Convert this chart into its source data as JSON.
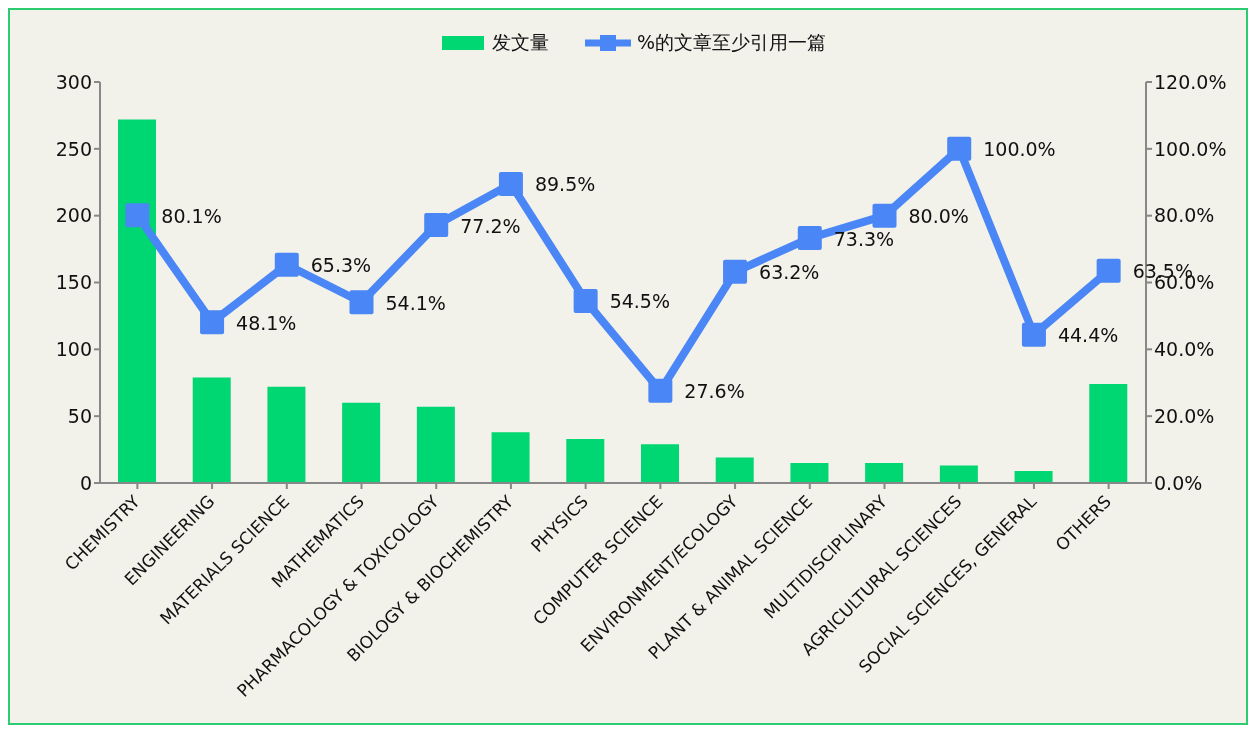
{
  "chart_data": {
    "type": "bar",
    "categories": [
      "CHEMISTRY",
      "ENGINEERING",
      "MATERIALS SCIENCE",
      "MATHEMATICS",
      "PHARMACOLOGY & TOXICOLOGY",
      "BIOLOGY & BIOCHEMISTRY",
      "PHYSICS",
      "COMPUTER SCIENCE",
      "ENVIRONMENT/ECOLOGY",
      "PLANT & ANIMAL SCIENCE",
      "MULTIDISCIPLINARY",
      "AGRICULTURAL SCIENCES",
      "SOCIAL SCIENCES, GENERAL",
      "OTHERS"
    ],
    "series": [
      {
        "name": "发文量",
        "color": "#00d672",
        "values": [
          272,
          79,
          72,
          60,
          57,
          38,
          33,
          29,
          19,
          15,
          15,
          13,
          9,
          74
        ]
      },
      {
        "name": "%的文章至少引用一篇",
        "type": "line",
        "axis": "y2",
        "color": "#4a86f5",
        "marker": "square",
        "values": [
          80.1,
          48.1,
          65.3,
          54.1,
          77.2,
          89.5,
          54.5,
          27.6,
          63.2,
          73.3,
          80.0,
          100.0,
          44.4,
          63.5
        ],
        "value_labels": [
          "80.1%",
          "48.1%",
          "65.3%",
          "54.1%",
          "77.2%",
          "89.5%",
          "54.5%",
          "27.6%",
          "63.2%",
          "73.3%",
          "80.0%",
          "100.0%",
          "44.4%",
          "63.5%"
        ]
      }
    ],
    "ylim": [
      0,
      300
    ],
    "yticks": [
      0,
      50,
      100,
      150,
      200,
      250,
      300
    ],
    "y2lim": [
      0,
      120
    ],
    "y2ticks": [
      {
        "value": 0,
        "label": "0.0%"
      },
      {
        "value": 20,
        "label": "20.0%"
      },
      {
        "value": 40,
        "label": "40.0%"
      },
      {
        "value": 60,
        "label": "60.0%"
      },
      {
        "value": 80,
        "label": "80.0%"
      },
      {
        "value": 100,
        "label": "100.0%"
      },
      {
        "value": 120,
        "label": "120.0%"
      }
    ],
    "legend": "top",
    "grid": false
  }
}
